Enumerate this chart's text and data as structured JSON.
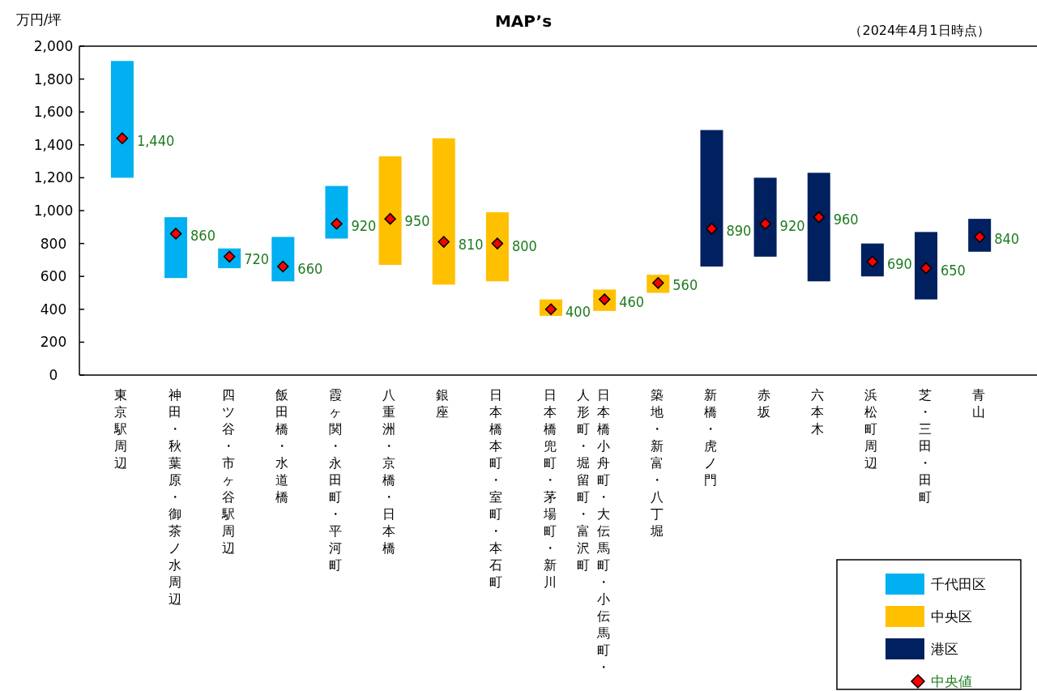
{
  "chart_data": {
    "type": "bar",
    "title": "MAP’s",
    "annotations": [
      "（2024年4月1日時点）"
    ],
    "ylabel": "万円/坪",
    "categories": [
      "東京駅周辺",
      "神田・秋葉原・御茶ノ水周辺",
      "四ツ谷・市ヶ谷駅周辺",
      "飯田橋・水道橋",
      "霞ヶ関・永田町・平河町",
      "八重洲・京橋・日本橋",
      "銀座",
      "日本橋本町・室町・本石町",
      "日本橋兜町・茅場町・新川",
      "日本橋小舟町・大伝馬町・小伝馬町・人形町・堀留町・富沢町",
      "築地・新富・八丁堀",
      "新橋・虎ノ門",
      "赤坂",
      "六本木",
      "浜松町周辺",
      "芝・三田・田町",
      "青山"
    ],
    "ylim": [
      0,
      2000
    ],
    "yticks": [
      0,
      200,
      400,
      600,
      800,
      {
        "value": 1000,
        "label": "1,000"
      },
      {
        "value": 1200,
        "label": "1,200"
      },
      {
        "value": 1400,
        "label": "1,400"
      },
      {
        "value": 1600,
        "label": "1,600"
      },
      {
        "value": 1800,
        "label": "1,800"
      },
      {
        "value": 2000,
        "label": "2,000"
      }
    ],
    "legend": "bottom right",
    "series": [
      {
        "name": "千代田区",
        "color": "#00b0f0",
        "base": [
          1200,
          590,
          650,
          570,
          830,
          null,
          null,
          null,
          null,
          null,
          null,
          null,
          null,
          null,
          null,
          null,
          null
        ],
        "values": [
          710,
          370,
          120,
          270,
          320,
          null,
          null,
          null,
          null,
          null,
          null,
          null,
          null,
          null,
          null,
          null,
          null
        ]
      },
      {
        "name": "中央区",
        "color": "#ffc000",
        "base": [
          null,
          null,
          null,
          null,
          null,
          670,
          550,
          570,
          360,
          390,
          500,
          null,
          null,
          null,
          null,
          null,
          null
        ],
        "values": [
          null,
          null,
          null,
          null,
          null,
          660,
          890,
          420,
          100,
          130,
          110,
          null,
          null,
          null,
          null,
          null,
          null
        ]
      },
      {
        "name": "港区",
        "color": "#002060",
        "base": [
          null,
          null,
          null,
          null,
          null,
          null,
          null,
          null,
          null,
          null,
          null,
          660,
          720,
          570,
          600,
          460,
          750
        ],
        "values": [
          null,
          null,
          null,
          null,
          null,
          null,
          null,
          null,
          null,
          null,
          null,
          830,
          480,
          660,
          200,
          410,
          200
        ]
      },
      {
        "name": "中央値",
        "type": "scatter",
        "color": "#ff0000",
        "marker": "diamond",
        "values": [
          1440,
          860,
          720,
          660,
          920,
          950,
          810,
          800,
          400,
          460,
          560,
          890,
          920,
          960,
          690,
          650,
          840
        ],
        "value_labels": [
          "1,440",
          "860",
          "720",
          "660",
          "920",
          "950",
          "810",
          "800",
          "400",
          "460",
          "560",
          "890",
          "920",
          "960",
          "690",
          "650",
          "840"
        ]
      }
    ]
  }
}
